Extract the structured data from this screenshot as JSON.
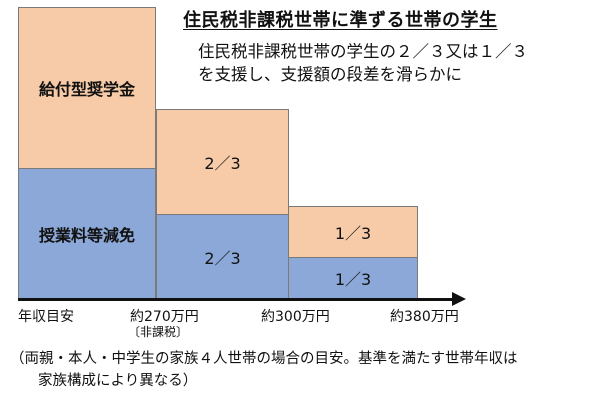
{
  "title": "住民税非課税世帯に準ずる世帯の学生",
  "description": {
    "line1": "住民税非課税世帯の学生の２／３又は１／３",
    "line2": "を支援し、支援額の段差を滑らかに"
  },
  "blocks": {
    "scholarship_label": "給付型奨学金",
    "tuition_label": "授業料等減免",
    "scholarship_tier2": "2／3",
    "tuition_tier2": "2／3",
    "scholarship_tier3": "1／3",
    "tuition_tier3": "1／3"
  },
  "axis": {
    "origin": "年収目安",
    "tick1": "約270万円",
    "tick1_sub": "〔非課税〕",
    "tick2": "約300万円",
    "tick3": "約380万円"
  },
  "note": {
    "line1": "（両親・本人・中学生の家族４人世帯の場合の目安。基準を満たす世帯年収は",
    "line2": "家族構成により異なる）"
  },
  "colors": {
    "scholarship": "#f7cba8",
    "tuition": "#8ca8d8"
  }
}
